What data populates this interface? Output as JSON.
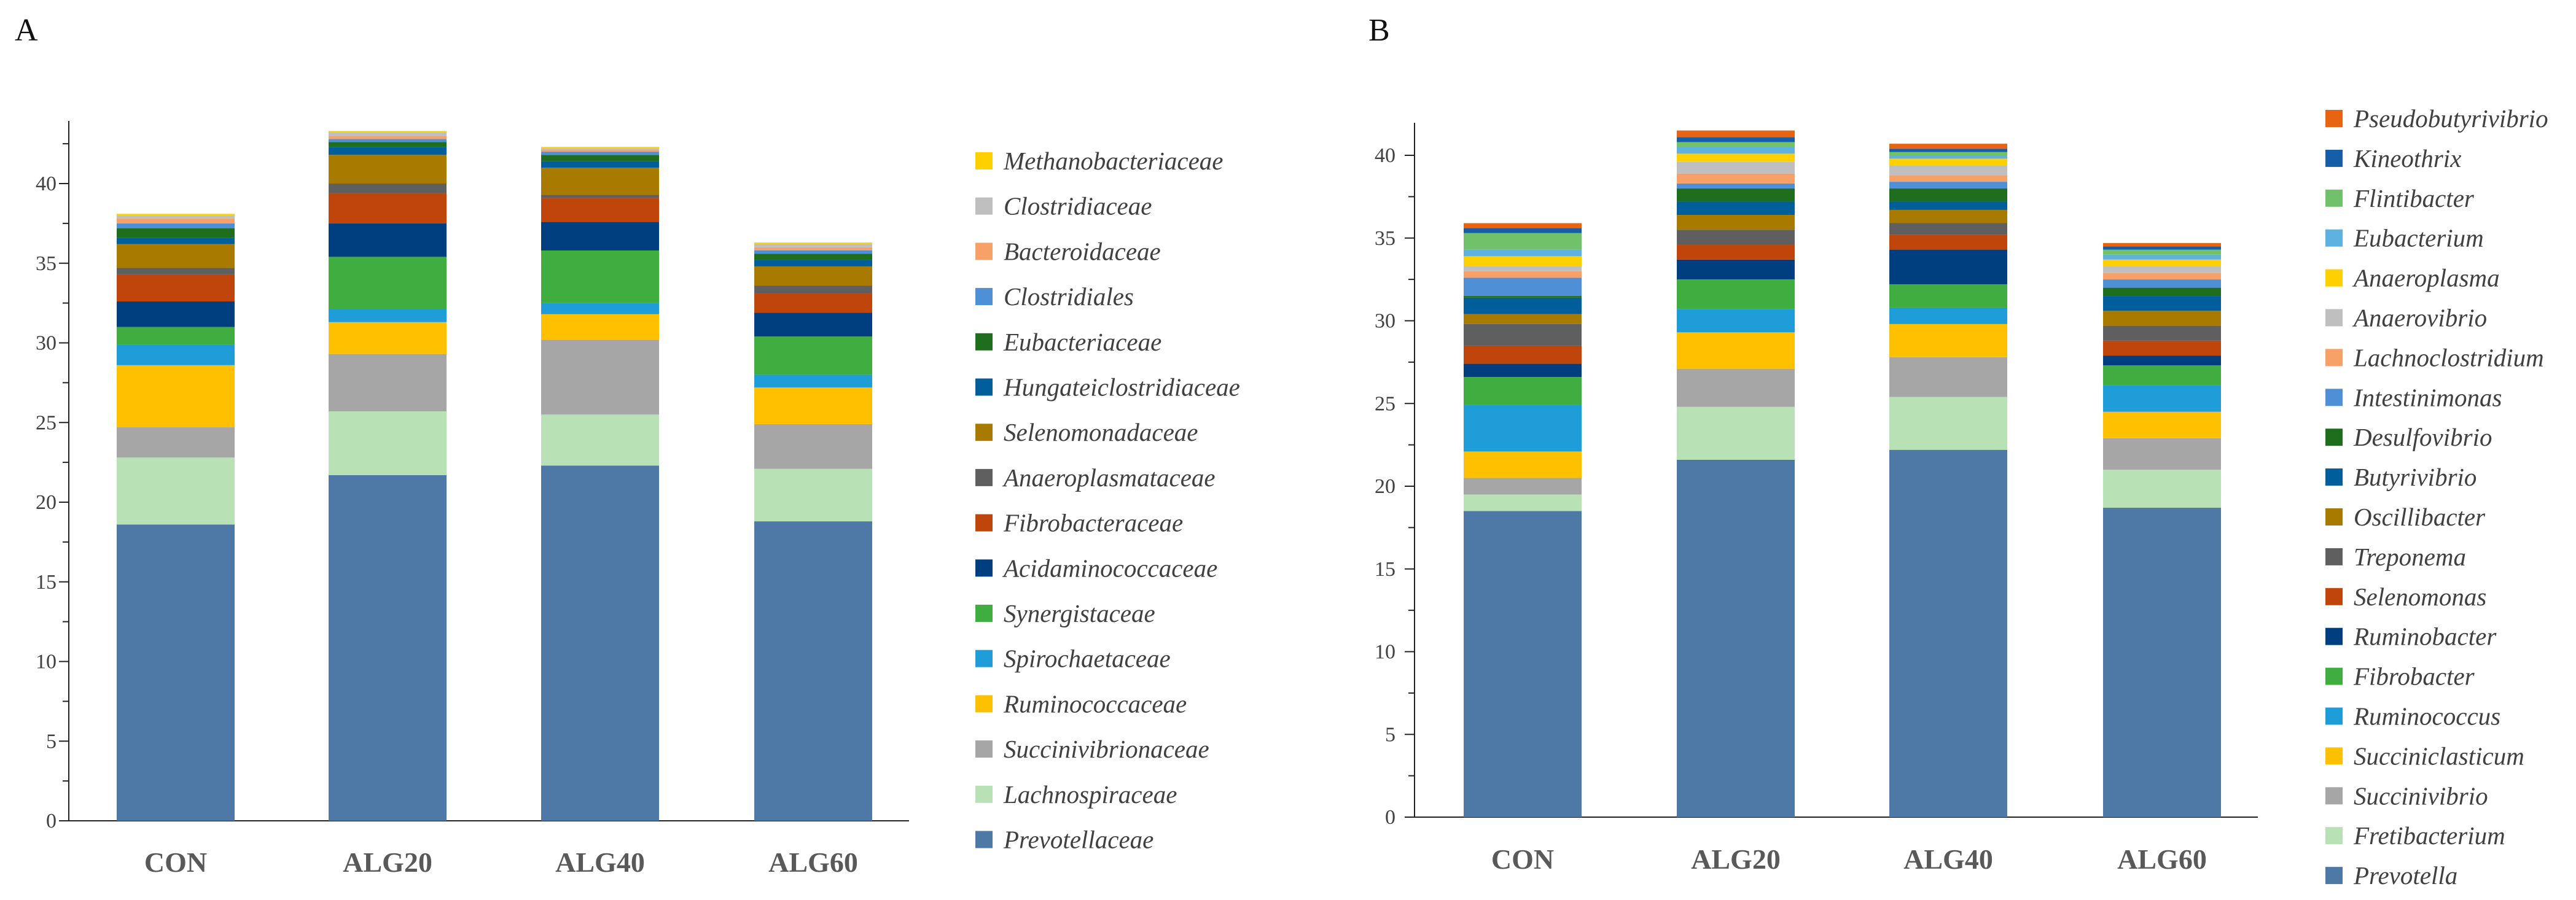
{
  "chart_data": [
    {
      "type": "bar",
      "stacked": true,
      "panel_label": "A",
      "title": "",
      "xlabel": "",
      "ylabel": "",
      "ylim": [
        0,
        44
      ],
      "yticks": [
        0,
        5,
        10,
        15,
        20,
        25,
        30,
        35,
        40
      ],
      "categories": [
        "CON",
        "ALG20",
        "ALG40",
        "ALG60"
      ],
      "legend_position": "right",
      "series": [
        {
          "name": "Prevotellaceae",
          "color": "#4e79a7",
          "values": [
            18.6,
            21.7,
            22.3,
            18.8
          ]
        },
        {
          "name": "Lachnospiraceae",
          "color": "#b8e1b5",
          "values": [
            4.2,
            4.0,
            3.2,
            3.3
          ]
        },
        {
          "name": "Succinivibrionaceae",
          "color": "#a6a6a6",
          "values": [
            1.9,
            3.6,
            4.7,
            2.8
          ]
        },
        {
          "name": "Ruminococcaceae",
          "color": "#ffc000",
          "values": [
            3.9,
            2.0,
            1.6,
            2.3
          ]
        },
        {
          "name": "Spirochaetaceae",
          "color": "#1f9dd9",
          "values": [
            1.3,
            0.8,
            0.7,
            0.8
          ]
        },
        {
          "name": "Synergistaceae",
          "color": "#40ad40",
          "values": [
            1.1,
            3.3,
            3.3,
            2.4
          ]
        },
        {
          "name": "Acidaminococcaceae",
          "color": "#003f7f",
          "values": [
            1.6,
            2.1,
            1.8,
            1.5
          ]
        },
        {
          "name": "Fibrobacteraceae",
          "color": "#c0450a",
          "values": [
            1.7,
            1.9,
            1.5,
            1.2
          ]
        },
        {
          "name": "Anaeroplasmataceae",
          "color": "#5f5f5f",
          "values": [
            0.4,
            0.6,
            0.2,
            0.5
          ]
        },
        {
          "name": "Selenomonadaceae",
          "color": "#a87a00",
          "values": [
            1.5,
            1.8,
            1.7,
            1.2
          ]
        },
        {
          "name": "Hungateiclostridiaceae",
          "color": "#005f9b",
          "values": [
            0.4,
            0.5,
            0.4,
            0.4
          ]
        },
        {
          "name": "Eubacteriaceae",
          "color": "#1e6e1e",
          "values": [
            0.6,
            0.3,
            0.4,
            0.4
          ]
        },
        {
          "name": "Clostridiales",
          "color": "#4f8fd6",
          "values": [
            0.3,
            0.2,
            0.2,
            0.2
          ]
        },
        {
          "name": "Bacteroidaceae",
          "color": "#f7a067",
          "values": [
            0.3,
            0.2,
            0.1,
            0.2
          ]
        },
        {
          "name": "Clostridiaceae",
          "color": "#bfbfbf",
          "values": [
            0.2,
            0.2,
            0.1,
            0.2
          ]
        },
        {
          "name": "Methanobacteriaceae",
          "color": "#ffd000",
          "values": [
            0.1,
            0.1,
            0.1,
            0.1
          ]
        }
      ]
    },
    {
      "type": "bar",
      "stacked": true,
      "panel_label": "B",
      "title": "",
      "xlabel": "",
      "ylabel": "",
      "ylim": [
        0,
        42
      ],
      "yticks": [
        0,
        5,
        10,
        15,
        20,
        25,
        30,
        35,
        40
      ],
      "categories": [
        "CON",
        "ALG20",
        "ALG40",
        "ALG60"
      ],
      "legend_position": "right",
      "series": [
        {
          "name": "Prevotella",
          "color": "#4e79a7",
          "values": [
            18.5,
            21.6,
            22.2,
            18.7
          ]
        },
        {
          "name": "Fretibacterium",
          "color": "#b8e1b5",
          "values": [
            1.0,
            3.2,
            3.2,
            2.3
          ]
        },
        {
          "name": "Succinivibrio",
          "color": "#a6a6a6",
          "values": [
            1.0,
            2.3,
            2.4,
            1.9
          ]
        },
        {
          "name": "Succiniclasticum",
          "color": "#ffc000",
          "values": [
            1.6,
            2.2,
            2.0,
            1.6
          ]
        },
        {
          "name": "Ruminococcus",
          "color": "#1f9dd9",
          "values": [
            2.8,
            1.4,
            1.0,
            1.6
          ]
        },
        {
          "name": "Fibrobacter",
          "color": "#40ad40",
          "values": [
            1.7,
            1.8,
            1.4,
            1.2
          ]
        },
        {
          "name": "Ruminobacter",
          "color": "#003f7f",
          "values": [
            0.8,
            1.2,
            2.1,
            0.6
          ]
        },
        {
          "name": "Selenomonas",
          "color": "#c0450a",
          "values": [
            1.1,
            0.9,
            0.9,
            0.9
          ]
        },
        {
          "name": "Treponema",
          "color": "#5f5f5f",
          "values": [
            1.3,
            0.9,
            0.7,
            0.9
          ]
        },
        {
          "name": "Oscillibacter",
          "color": "#a87a00",
          "values": [
            0.6,
            0.9,
            0.8,
            0.9
          ]
        },
        {
          "name": "Butyrivibrio",
          "color": "#005f9b",
          "values": [
            1.0,
            0.8,
            0.5,
            0.9
          ]
        },
        {
          "name": "Desulfovibrio",
          "color": "#1e6e1e",
          "values": [
            0.1,
            0.8,
            0.8,
            0.5
          ]
        },
        {
          "name": "Intestinimonas",
          "color": "#4f8fd6",
          "values": [
            1.1,
            0.3,
            0.4,
            0.5
          ]
        },
        {
          "name": "Lachnoclostridium",
          "color": "#f7a067",
          "values": [
            0.4,
            0.6,
            0.4,
            0.4
          ]
        },
        {
          "name": "Anaerovibrio",
          "color": "#bfbfbf",
          "values": [
            0.3,
            0.7,
            0.6,
            0.4
          ]
        },
        {
          "name": "Anaeroplasma",
          "color": "#ffd000",
          "values": [
            0.6,
            0.5,
            0.4,
            0.4
          ]
        },
        {
          "name": "Eubacterium",
          "color": "#5fb2e0",
          "values": [
            0.4,
            0.4,
            0.2,
            0.3
          ]
        },
        {
          "name": "Flintibacter",
          "color": "#70c16a",
          "values": [
            1.0,
            0.3,
            0.2,
            0.3
          ]
        },
        {
          "name": "Kineothrix",
          "color": "#175ea8",
          "values": [
            0.3,
            0.3,
            0.2,
            0.2
          ]
        },
        {
          "name": "Pseudobutyrivibrio",
          "color": "#e86412",
          "values": [
            0.3,
            0.4,
            0.3,
            0.2
          ]
        }
      ]
    }
  ]
}
